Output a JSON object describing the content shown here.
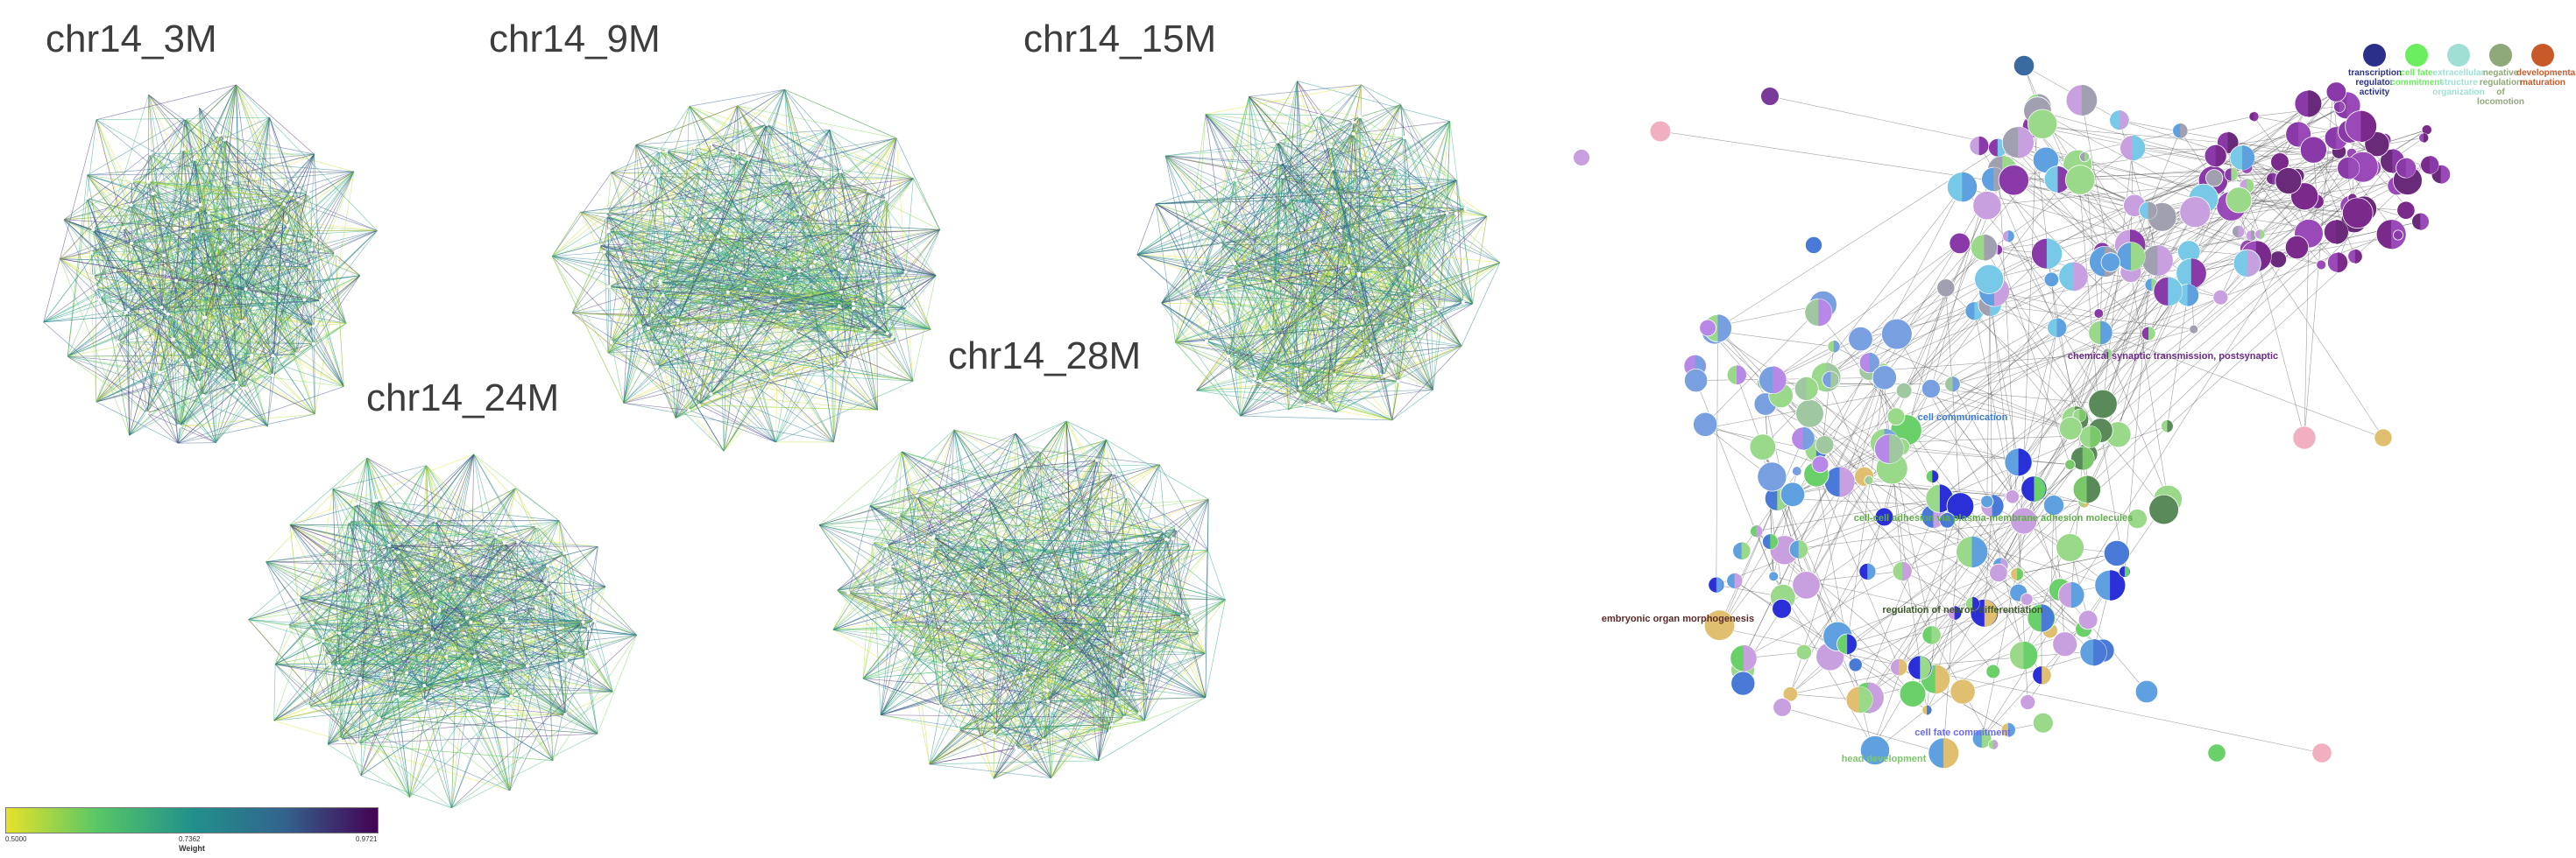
{
  "networks": [
    {
      "id": "n3",
      "title": "chr14_3M"
    },
    {
      "id": "n9",
      "title": "chr14_9M"
    },
    {
      "id": "n15",
      "title": "chr14_15M"
    },
    {
      "id": "n24",
      "title": "chr14_24M"
    },
    {
      "id": "n28",
      "title": "chr14_28M"
    }
  ],
  "colorbar": {
    "label": "Weight",
    "ticks": [
      "0.5000",
      "0.7362",
      "0.9721"
    ],
    "colors": [
      "#e6e22a",
      "#56c667",
      "#21918c",
      "#33638d",
      "#440154"
    ]
  },
  "go_legend": {
    "items": [
      {
        "label": "transcription regulator activity",
        "color": "#2b2f8a"
      },
      {
        "label": "cell fate commitment",
        "color": "#6bef5f"
      },
      {
        "label": "extracellular structure organization",
        "color": "#9fe0d4"
      },
      {
        "label": "negative regulation of locomotion",
        "color": "#8fa87a"
      },
      {
        "label": "developmental maturation",
        "color": "#c85a2a"
      }
    ]
  },
  "go_labels": [
    {
      "text": "cell-cell adhesion via plasma-membrane adhesion molecules",
      "color": "#5fae4a"
    },
    {
      "text": "regulation of neuron differentiation",
      "color": "#3d5a2a"
    },
    {
      "text": "embryonic organ morphogenesis",
      "color": "#5a2a2a"
    },
    {
      "text": "cell fate commitment",
      "color": "#6a6af0"
    },
    {
      "text": "head development",
      "color": "#7ac86a"
    },
    {
      "text": "chemical synaptic transmission, postsynaptic",
      "color": "#6a2a8a"
    },
    {
      "text": "cell communication",
      "color": "#3a7ad8"
    }
  ]
}
